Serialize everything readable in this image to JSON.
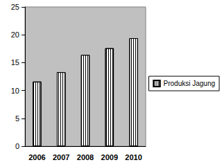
{
  "chart_data": {
    "type": "bar",
    "categories": [
      "2006",
      "2007",
      "2008",
      "2009",
      "2010"
    ],
    "series": [
      {
        "name": "Produksi Jagung",
        "color": "#ffffff",
        "values": [
          11.6,
          13.3,
          16.4,
          17.6,
          19.4
        ]
      }
    ],
    "ylim": [
      0,
      25
    ],
    "yticks": [
      0,
      5,
      10,
      15,
      20,
      25
    ],
    "grid": false,
    "legend": "right"
  }
}
